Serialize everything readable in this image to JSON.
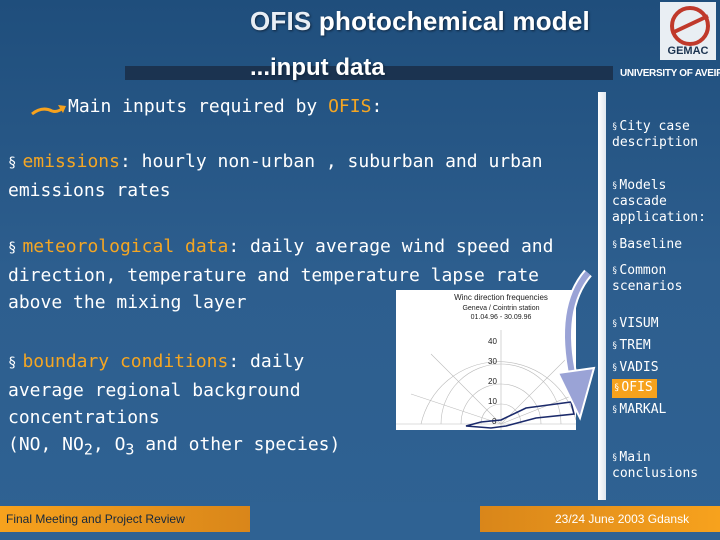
{
  "header": {
    "title_bold": "OFIS",
    "title_rest": " photochemical model",
    "subtitle": "...input data",
    "logo_text": "GEMAC",
    "university": "UNIVERSITY OF AVEIRO"
  },
  "intro": {
    "prefix": "Main inputs required by ",
    "name": "OFIS",
    "suffix": ":"
  },
  "bullets": [
    {
      "marker": "§",
      "term": "emissions",
      "text": ": hourly non-urban , suburban and urban emissions rates"
    },
    {
      "marker": "§",
      "term": "meteorological data",
      "text": ": daily average wind speed and direction, temperature and temperature lapse rate above the mixing layer"
    },
    {
      "marker": "§",
      "term": "boundary conditions",
      "text": ": daily average regional background concentrations",
      "species_prefix": "(NO, NO",
      "sub1": "2",
      "mid": ", O",
      "sub2": "3",
      "species_suffix": " and other species)"
    }
  ],
  "chart": {
    "title": "Winc direction frequencies",
    "subtitle1": "Geneva / Cointrin station",
    "subtitle2": "01.04.96 - 30.09.96",
    "radial_ticks": [
      "40",
      "30",
      "20",
      "10",
      "0"
    ]
  },
  "sidebar": {
    "items": [
      {
        "marker": "§",
        "label": "City case description"
      },
      {
        "marker": "§",
        "label": "Models cascade application:"
      },
      {
        "marker": "§",
        "label": "Baseline"
      },
      {
        "marker": "§",
        "label": "Common scenarios"
      },
      {
        "marker": "§",
        "label": "VISUM"
      },
      {
        "marker": "§",
        "label": "TREM"
      },
      {
        "marker": "§",
        "label": "VADIS"
      },
      {
        "marker": "§",
        "label": "OFIS"
      },
      {
        "marker": "§",
        "label": "MARKAL"
      },
      {
        "marker": "§",
        "label": "Main conclusions"
      }
    ]
  },
  "footer": {
    "left": "Final Meeting and Project Review",
    "right": "23/24 June 2003 Gdansk"
  },
  "colors": {
    "accent": "#f7a21d",
    "background": "#2a5a88",
    "highlight_text": "#f5a623"
  }
}
